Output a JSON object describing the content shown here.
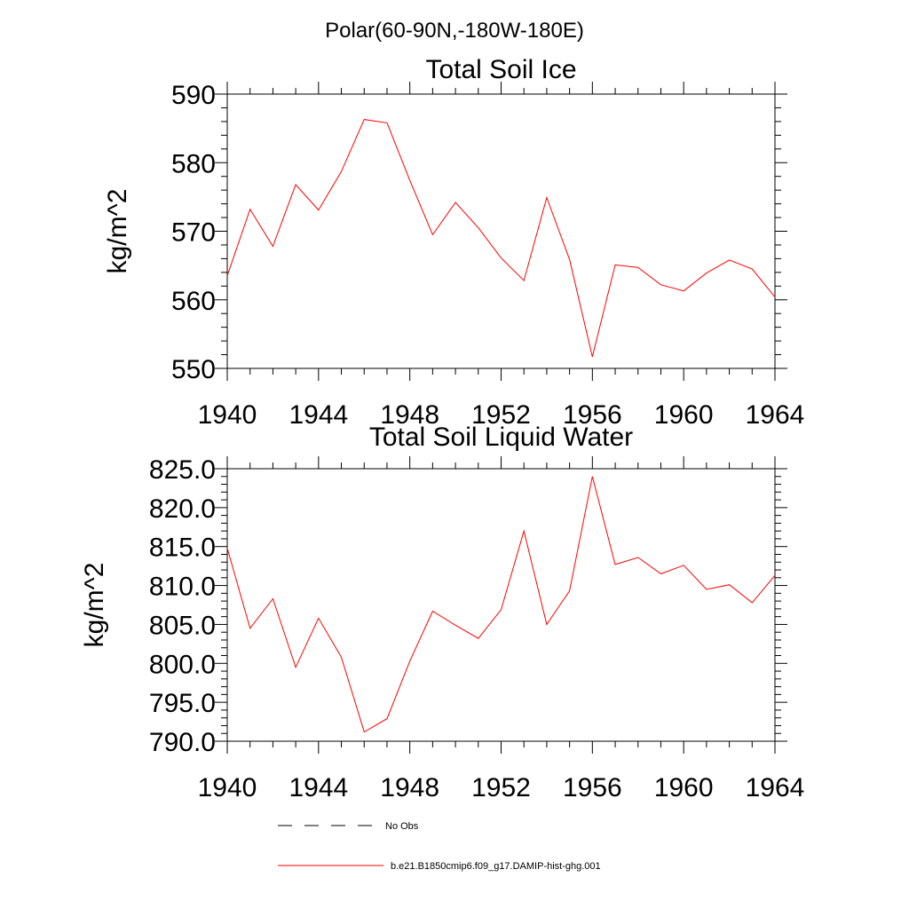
{
  "figure": {
    "suptitle": "Polar(60-90N,-180W-180E)"
  },
  "legend": {
    "items": [
      {
        "label": "No Obs",
        "color": "#000000",
        "style": "dashed"
      },
      {
        "label": "b.e21.B1850cmip6.f09_g17.DAMIP-hist-ghg.001",
        "color": "#ff0000",
        "style": "solid"
      }
    ]
  },
  "chart_data": [
    {
      "type": "line",
      "title": "Total Soil Ice",
      "ylabel": "kg/m^2",
      "xlim": [
        1940,
        1964
      ],
      "ylim": [
        550,
        590
      ],
      "xticks": [
        1940,
        1944,
        1948,
        1952,
        1956,
        1960,
        1964
      ],
      "yticks": [
        550,
        560,
        570,
        580,
        590
      ],
      "ytick_labels": [
        "550",
        "560",
        "570",
        "580",
        "590"
      ],
      "x": [
        1940,
        1941,
        1942,
        1943,
        1944,
        1945,
        1946,
        1947,
        1948,
        1949,
        1950,
        1951,
        1952,
        1953,
        1954,
        1955,
        1956,
        1957,
        1958,
        1959,
        1960,
        1961,
        1962,
        1963,
        1964
      ],
      "series": [
        {
          "color": "#ff0000",
          "values": [
            563.5,
            573.2,
            567.8,
            576.8,
            573.1,
            578.7,
            586.3,
            585.8,
            577.4,
            569.5,
            574.2,
            570.5,
            566.1,
            562.8,
            574.9,
            565.9,
            551.7,
            565.1,
            564.7,
            562.2,
            561.3,
            563.9,
            565.8,
            564.5,
            560.4
          ]
        }
      ]
    },
    {
      "type": "line",
      "title": "Total Soil Liquid Water",
      "ylabel": "kg/m^2",
      "xlim": [
        1940,
        1964
      ],
      "ylim": [
        790,
        825
      ],
      "xticks": [
        1940,
        1944,
        1948,
        1952,
        1956,
        1960,
        1964
      ],
      "yticks": [
        790,
        795,
        800,
        805,
        810,
        815,
        820,
        825
      ],
      "ytick_labels": [
        "790.0",
        "795.0",
        "800.0",
        "805.0",
        "810.0",
        "815.0",
        "820.0",
        "825.0"
      ],
      "x": [
        1940,
        1941,
        1942,
        1943,
        1944,
        1945,
        1946,
        1947,
        1948,
        1949,
        1950,
        1951,
        1952,
        1953,
        1954,
        1955,
        1956,
        1957,
        1958,
        1959,
        1960,
        1961,
        1962,
        1963,
        1964
      ],
      "series": [
        {
          "color": "#ff0000",
          "values": [
            814.8,
            804.5,
            808.3,
            799.5,
            805.8,
            800.8,
            791.2,
            792.9,
            800.3,
            806.7,
            804.9,
            803.2,
            806.9,
            817.0,
            805.0,
            809.3,
            824.0,
            812.7,
            813.6,
            811.5,
            812.6,
            809.5,
            810.1,
            807.8,
            811.3
          ]
        }
      ]
    }
  ]
}
